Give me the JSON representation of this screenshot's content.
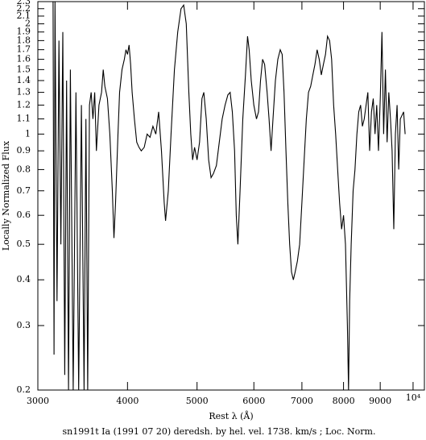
{
  "chart_data": {
    "type": "line",
    "xlabel": "Rest λ (Å)",
    "ylabel": "Locally Normalized Flux",
    "caption": "sn1991t Ia (1991 07 20) deredsh. by hel. vel.  1738. km/s ;  Loc. Norm.",
    "xscale": "log",
    "yscale": "log",
    "color": "#000000",
    "xlim": [
      3000,
      10370
    ],
    "ylim": [
      0.2,
      2.3
    ],
    "xticks": [
      3000,
      4000,
      5000,
      6000,
      7000,
      8000,
      9000,
      {
        "value": 10000,
        "label": "10⁴"
      }
    ],
    "yticks": [
      0.2,
      0.3,
      0.4,
      0.5,
      0.6,
      0.7,
      0.8,
      0.9,
      1,
      1.1,
      1.2,
      1.3,
      1.4,
      1.5,
      1.6,
      1.7,
      1.8,
      1.9,
      2,
      2.1,
      2.2,
      2.3
    ],
    "x": [
      3150,
      3160,
      3170,
      3190,
      3210,
      3230,
      3250,
      3270,
      3290,
      3310,
      3330,
      3360,
      3390,
      3420,
      3450,
      3480,
      3500,
      3520,
      3540,
      3560,
      3580,
      3600,
      3620,
      3650,
      3680,
      3700,
      3720,
      3750,
      3780,
      3810,
      3830,
      3850,
      3880,
      3900,
      3930,
      3960,
      3980,
      4000,
      4020,
      4040,
      4060,
      4090,
      4120,
      4150,
      4180,
      4220,
      4260,
      4300,
      4340,
      4380,
      4420,
      4460,
      4500,
      4520,
      4560,
      4600,
      4650,
      4700,
      4750,
      4790,
      4830,
      4870,
      4900,
      4930,
      4960,
      5000,
      5040,
      5080,
      5110,
      5150,
      5190,
      5230,
      5270,
      5320,
      5370,
      5420,
      5470,
      5520,
      5560,
      5600,
      5640,
      5670,
      5700,
      5740,
      5790,
      5840,
      5880,
      5910,
      5950,
      6000,
      6050,
      6090,
      6130,
      6170,
      6210,
      6260,
      6300,
      6340,
      6380,
      6430,
      6480,
      6530,
      6570,
      6610,
      6650,
      6690,
      6730,
      6770,
      6810,
      6850,
      6900,
      6950,
      7000,
      7050,
      7100,
      7150,
      7200,
      7250,
      7300,
      7350,
      7400,
      7450,
      7500,
      7550,
      7600,
      7650,
      7700,
      7750,
      7800,
      7850,
      7900,
      7950,
      8000,
      8050,
      8100,
      8130,
      8160,
      8200,
      8250,
      8300,
      8350,
      8400,
      8450,
      8500,
      8550,
      8600,
      8650,
      8700,
      8750,
      8800,
      8850,
      8900,
      8950,
      9000,
      9050,
      9100,
      9150,
      9200,
      9250,
      9300,
      9350,
      9400,
      9450,
      9500,
      9550,
      9600,
      9700,
      9750
    ],
    "values": [
      2.3,
      0.25,
      2.3,
      0.35,
      1.8,
      0.5,
      1.9,
      0.22,
      1.4,
      0.2,
      1.5,
      0.2,
      1.3,
      0.2,
      1.2,
      0.2,
      1.1,
      0.2,
      1.2,
      1.3,
      1.1,
      1.3,
      0.9,
      1.2,
      1.3,
      1.5,
      1.35,
      1.25,
      1.0,
      0.7,
      0.52,
      0.65,
      1.0,
      1.3,
      1.5,
      1.6,
      1.7,
      1.65,
      1.75,
      1.55,
      1.3,
      1.1,
      0.95,
      0.92,
      0.9,
      0.92,
      1.0,
      0.98,
      1.05,
      1.0,
      1.15,
      0.9,
      0.65,
      0.58,
      0.7,
      1.0,
      1.5,
      1.9,
      2.2,
      2.25,
      2.0,
      1.3,
      1.0,
      0.85,
      0.92,
      0.85,
      0.95,
      1.25,
      1.3,
      1.1,
      0.85,
      0.76,
      0.78,
      0.82,
      0.95,
      1.1,
      1.2,
      1.28,
      1.3,
      1.15,
      0.9,
      0.6,
      0.5,
      0.7,
      1.1,
      1.45,
      1.85,
      1.7,
      1.4,
      1.2,
      1.1,
      1.15,
      1.4,
      1.6,
      1.55,
      1.3,
      1.1,
      0.9,
      1.1,
      1.4,
      1.6,
      1.7,
      1.65,
      1.3,
      0.9,
      0.65,
      0.5,
      0.42,
      0.4,
      0.42,
      0.45,
      0.5,
      0.65,
      0.85,
      1.1,
      1.3,
      1.35,
      1.45,
      1.55,
      1.7,
      1.6,
      1.45,
      1.55,
      1.65,
      1.85,
      1.8,
      1.6,
      1.2,
      1.0,
      0.8,
      0.65,
      0.55,
      0.6,
      0.5,
      0.3,
      0.2,
      0.35,
      0.5,
      0.7,
      0.8,
      1.0,
      1.15,
      1.2,
      1.05,
      1.1,
      1.2,
      1.3,
      0.9,
      1.15,
      1.25,
      1.0,
      1.2,
      0.9,
      1.25,
      1.9,
      1.0,
      1.5,
      0.95,
      1.3,
      1.1,
      0.9,
      0.55,
      1.0,
      1.2,
      0.8,
      1.1,
      1.15,
      1.0
    ]
  }
}
